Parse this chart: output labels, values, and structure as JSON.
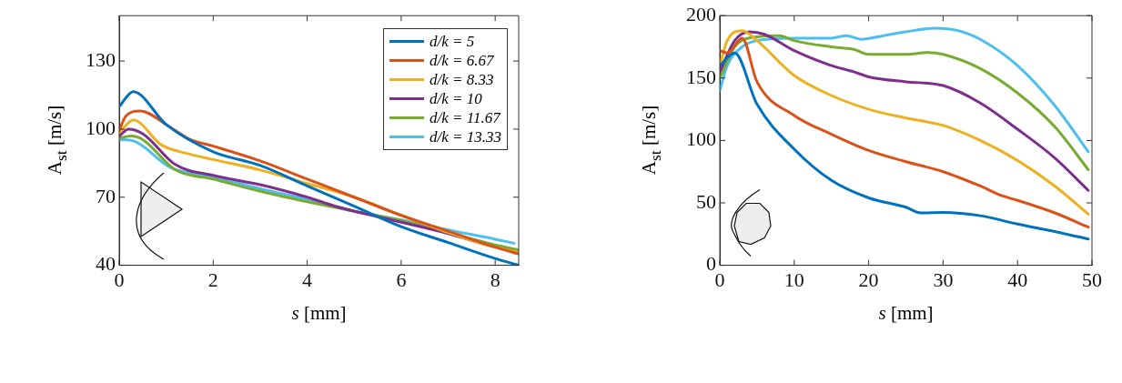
{
  "chart_data": [
    {
      "type": "line",
      "xlabel": "s [mm]",
      "ylabel": "A$_{st}$ [m/s]",
      "xlim": [
        0,
        8.5
      ],
      "ylim": [
        40,
        150
      ],
      "xticks": [
        0,
        2,
        4,
        6,
        8
      ],
      "yticks": [
        40,
        70,
        100,
        130
      ],
      "grid": false,
      "legend": "top right",
      "marker": "none",
      "line_style": "solid",
      "series": [
        {
          "name": "d/k = 5",
          "color": "#0072bd",
          "x": [
            0,
            0.3,
            1,
            2,
            3,
            4,
            5,
            6,
            7,
            8,
            8.5
          ],
          "values": [
            110,
            116.5,
            102,
            90,
            84,
            75,
            66,
            57,
            50,
            43,
            40
          ]
        },
        {
          "name": "d/k = 6.67",
          "color": "#d95319",
          "x": [
            0,
            0.15,
            0.45,
            1,
            1.5,
            2,
            3,
            4,
            5,
            6,
            7,
            8,
            8.5
          ],
          "values": [
            99.5,
            106,
            108,
            102,
            95.5,
            92.5,
            86,
            78,
            70,
            62,
            55,
            48,
            45
          ]
        },
        {
          "name": "d/k = 8.33",
          "color": "#edb120",
          "x": [
            0,
            0.3,
            0.9,
            1.5,
            2,
            3,
            4,
            5,
            6,
            7,
            8,
            8.5
          ],
          "values": [
            98.4,
            104,
            93,
            89,
            86.6,
            82,
            76,
            70,
            62,
            54.4,
            48,
            45.6
          ]
        },
        {
          "name": "d/k = 10",
          "color": "#7e2f8e",
          "x": [
            0,
            0.2,
            0.5,
            1.2,
            2,
            3,
            4,
            4.6,
            5.5,
            6,
            7,
            8,
            8.5
          ],
          "values": [
            97,
            100,
            98,
            84.3,
            79.6,
            75.5,
            70,
            66,
            61.4,
            59,
            54,
            48,
            45.6
          ]
        },
        {
          "name": "d/k = 11.67",
          "color": "#77ac30",
          "x": [
            0,
            0.25,
            0.5,
            1.2,
            2,
            3,
            4,
            5,
            6,
            7,
            8,
            8.5
          ],
          "values": [
            96,
            97,
            95.4,
            82,
            78,
            72.6,
            68,
            63.8,
            59.7,
            54.4,
            49,
            46.8
          ]
        },
        {
          "name": "d/k = 13.33",
          "color": "#4dbeee",
          "x": [
            0,
            0.3,
            1.1,
            2,
            3,
            4,
            5,
            6,
            7,
            8,
            8.4
          ],
          "values": [
            95.4,
            94.8,
            83,
            79,
            73.7,
            69,
            63.8,
            60,
            55.6,
            51.5,
            49.7
          ]
        }
      ]
    },
    {
      "type": "line",
      "xlabel": "s [mm]",
      "ylabel": "A$_{st}$ [m/s]",
      "xlim": [
        0,
        50
      ],
      "ylim": [
        0,
        200
      ],
      "xticks": [
        0,
        10,
        20,
        30,
        40,
        50
      ],
      "yticks": [
        0,
        50,
        100,
        150,
        200
      ],
      "grid": false,
      "legend": false,
      "marker": "none",
      "line_style": "solid",
      "series": [
        {
          "color": "#0072bd",
          "x": [
            0,
            2,
            5,
            10,
            15,
            20,
            25,
            27,
            30,
            35,
            40,
            45,
            49.5
          ],
          "values": [
            160,
            170,
            129,
            93,
            68,
            54,
            46.5,
            42,
            42.4,
            39.7,
            33,
            27,
            21
          ]
        },
        {
          "color": "#d95319",
          "x": [
            0,
            1,
            3,
            5,
            10,
            15,
            20,
            25,
            30,
            35,
            38,
            40,
            45,
            49.5
          ],
          "values": [
            172,
            170,
            182,
            147,
            120,
            105,
            92,
            83,
            75,
            63.5,
            55.5,
            52,
            42,
            30.6
          ]
        },
        {
          "color": "#edb120",
          "x": [
            0,
            1,
            3,
            5,
            10,
            15,
            20,
            25,
            30,
            35,
            40,
            45,
            49.5
          ],
          "values": [
            160,
            180,
            188,
            180,
            152,
            136,
            125,
            118,
            112,
            100,
            84,
            63.5,
            41
          ]
        },
        {
          "color": "#7e2f8e",
          "x": [
            0,
            2,
            4,
            6,
            10,
            15,
            18,
            20,
            25,
            30,
            35,
            40,
            45,
            49.5
          ],
          "values": [
            155,
            180,
            187,
            185,
            172,
            160,
            155,
            151,
            147,
            144,
            130,
            109,
            86,
            60
          ]
        },
        {
          "color": "#77ac30",
          "x": [
            0,
            2,
            5,
            8,
            10,
            15,
            18,
            20,
            25,
            28,
            30,
            35,
            40,
            45,
            49.5
          ],
          "values": [
            150,
            175,
            183,
            184,
            180,
            175,
            173,
            169,
            169,
            170.5,
            169,
            157.6,
            138,
            111,
            76.6
          ]
        },
        {
          "color": "#4dbeee",
          "x": [
            0,
            1,
            3,
            5,
            10,
            15,
            17,
            19,
            22,
            25,
            29,
            32,
            35,
            40,
            45,
            49.5
          ],
          "values": [
            140,
            160,
            175,
            180,
            182,
            182,
            184,
            181,
            184,
            187,
            190,
            188,
            181,
            160,
            128,
            91
          ]
        }
      ]
    }
  ]
}
